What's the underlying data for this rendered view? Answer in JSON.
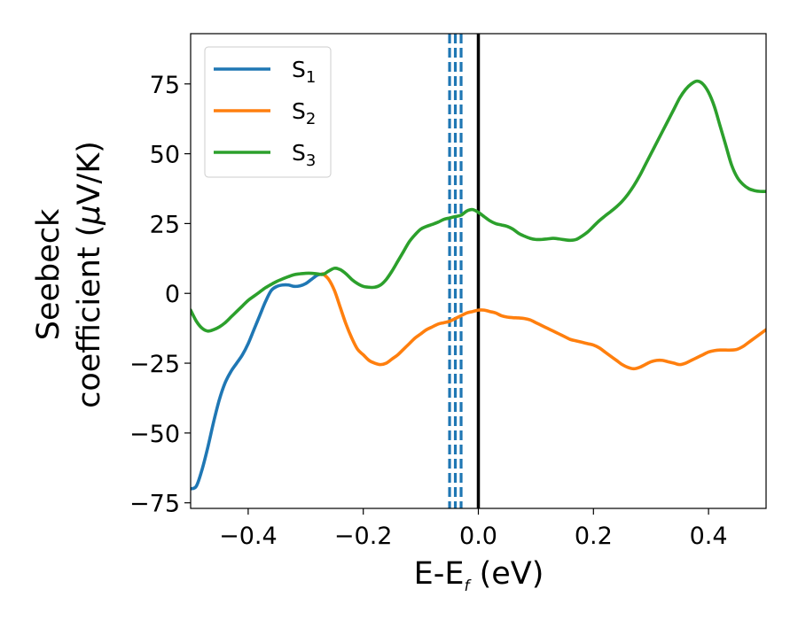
{
  "chart_data": {
    "type": "line",
    "xlabel": "E-E",
    "xlabel_sub": "f",
    "xlabel_tail": " (eV)",
    "ylabel_line1": "Seebeck",
    "ylabel_line2": "coefficient  (",
    "ylabel_mu": "μ",
    "ylabel_tail": "V/K)",
    "xlim": [
      -0.5,
      0.5
    ],
    "ylim": [
      -77,
      93
    ],
    "x_ticks": [
      -0.4,
      -0.2,
      0.0,
      0.2,
      0.4
    ],
    "x_tick_labels": [
      "−0.4",
      "−0.2",
      "0.0",
      "0.2",
      "0.4"
    ],
    "y_ticks": [
      -75,
      -50,
      -25,
      0,
      25,
      50,
      75
    ],
    "y_tick_labels": [
      "−75",
      "−50",
      "−25",
      "0",
      "25",
      "50",
      "75"
    ],
    "legend_position": "top-left",
    "series": [
      {
        "name": "S",
        "sub": "1",
        "color": "#1f77b4",
        "points": [
          [
            -0.5,
            -70
          ],
          [
            -0.49,
            -69
          ],
          [
            -0.48,
            -63
          ],
          [
            -0.47,
            -55
          ],
          [
            -0.46,
            -46
          ],
          [
            -0.45,
            -38
          ],
          [
            -0.44,
            -32
          ],
          [
            -0.43,
            -28
          ],
          [
            -0.42,
            -25
          ],
          [
            -0.41,
            -22
          ],
          [
            -0.4,
            -18
          ],
          [
            -0.39,
            -13
          ],
          [
            -0.38,
            -8
          ],
          [
            -0.37,
            -3
          ],
          [
            -0.36,
            1
          ],
          [
            -0.35,
            2.5
          ],
          [
            -0.34,
            3
          ],
          [
            -0.33,
            3
          ],
          [
            -0.32,
            2.5
          ],
          [
            -0.31,
            2.7
          ],
          [
            -0.3,
            3.5
          ],
          [
            -0.29,
            5
          ],
          [
            -0.28,
            6.5
          ],
          [
            -0.27,
            7
          ]
        ]
      },
      {
        "name": "S",
        "sub": "2",
        "color": "#ff7f0e",
        "points": [
          [
            -0.27,
            7
          ],
          [
            -0.26,
            5
          ],
          [
            -0.25,
            1
          ],
          [
            -0.24,
            -5
          ],
          [
            -0.23,
            -11
          ],
          [
            -0.22,
            -16
          ],
          [
            -0.21,
            -20
          ],
          [
            -0.2,
            -22
          ],
          [
            -0.19,
            -24
          ],
          [
            -0.18,
            -25
          ],
          [
            -0.17,
            -25.5
          ],
          [
            -0.16,
            -25
          ],
          [
            -0.15,
            -23.5
          ],
          [
            -0.14,
            -22
          ],
          [
            -0.13,
            -20
          ],
          [
            -0.12,
            -18
          ],
          [
            -0.11,
            -16
          ],
          [
            -0.1,
            -14.5
          ],
          [
            -0.09,
            -13
          ],
          [
            -0.08,
            -12
          ],
          [
            -0.07,
            -11
          ],
          [
            -0.06,
            -10.5
          ],
          [
            -0.05,
            -10
          ],
          [
            -0.04,
            -9
          ],
          [
            -0.03,
            -8
          ],
          [
            -0.02,
            -7
          ],
          [
            -0.01,
            -6.5
          ],
          [
            0.0,
            -6
          ],
          [
            0.01,
            -6
          ],
          [
            0.02,
            -6.5
          ],
          [
            0.03,
            -7
          ],
          [
            0.04,
            -8
          ],
          [
            0.05,
            -8.5
          ],
          [
            0.06,
            -8.7
          ],
          [
            0.07,
            -8.8
          ],
          [
            0.08,
            -9
          ],
          [
            0.09,
            -9.5
          ],
          [
            0.1,
            -10.5
          ],
          [
            0.11,
            -11.5
          ],
          [
            0.12,
            -12.5
          ],
          [
            0.13,
            -13.5
          ],
          [
            0.14,
            -14.5
          ],
          [
            0.15,
            -15.5
          ],
          [
            0.16,
            -16.5
          ],
          [
            0.17,
            -17
          ],
          [
            0.18,
            -17.5
          ],
          [
            0.19,
            -18
          ],
          [
            0.2,
            -18.5
          ],
          [
            0.21,
            -19.5
          ],
          [
            0.22,
            -21
          ],
          [
            0.23,
            -22.5
          ],
          [
            0.24,
            -24
          ],
          [
            0.25,
            -25.5
          ],
          [
            0.26,
            -26.5
          ],
          [
            0.27,
            -27
          ],
          [
            0.28,
            -26.5
          ],
          [
            0.29,
            -25.5
          ],
          [
            0.3,
            -24.5
          ],
          [
            0.31,
            -24
          ],
          [
            0.32,
            -24
          ],
          [
            0.33,
            -24.5
          ],
          [
            0.34,
            -25
          ],
          [
            0.35,
            -25.5
          ],
          [
            0.36,
            -25
          ],
          [
            0.37,
            -24
          ],
          [
            0.38,
            -23
          ],
          [
            0.39,
            -22
          ],
          [
            0.4,
            -21
          ],
          [
            0.41,
            -20.5
          ],
          [
            0.42,
            -20.3
          ],
          [
            0.43,
            -20.3
          ],
          [
            0.44,
            -20.3
          ],
          [
            0.45,
            -20
          ],
          [
            0.46,
            -19
          ],
          [
            0.47,
            -17.5
          ],
          [
            0.48,
            -16
          ],
          [
            0.49,
            -14.5
          ],
          [
            0.5,
            -13
          ]
        ]
      },
      {
        "name": "S",
        "sub": "3",
        "color": "#2ca02c",
        "points": [
          [
            -0.5,
            -6
          ],
          [
            -0.49,
            -10
          ],
          [
            -0.48,
            -12.5
          ],
          [
            -0.47,
            -13.5
          ],
          [
            -0.46,
            -13
          ],
          [
            -0.45,
            -12
          ],
          [
            -0.44,
            -10.5
          ],
          [
            -0.43,
            -8.5
          ],
          [
            -0.42,
            -6.5
          ],
          [
            -0.41,
            -4.5
          ],
          [
            -0.4,
            -2.5
          ],
          [
            -0.39,
            -1
          ],
          [
            -0.38,
            0.5
          ],
          [
            -0.37,
            2
          ],
          [
            -0.36,
            3.2
          ],
          [
            -0.35,
            4.3
          ],
          [
            -0.34,
            5.2
          ],
          [
            -0.33,
            6
          ],
          [
            -0.32,
            6.7
          ],
          [
            -0.31,
            7
          ],
          [
            -0.3,
            7.2
          ],
          [
            -0.29,
            7.2
          ],
          [
            -0.28,
            7
          ],
          [
            -0.27,
            6.8
          ],
          [
            -0.26,
            8
          ],
          [
            -0.25,
            9
          ],
          [
            -0.24,
            8.5
          ],
          [
            -0.23,
            7
          ],
          [
            -0.22,
            5
          ],
          [
            -0.21,
            3.5
          ],
          [
            -0.2,
            2.5
          ],
          [
            -0.19,
            2.2
          ],
          [
            -0.18,
            2.2
          ],
          [
            -0.17,
            3
          ],
          [
            -0.16,
            5
          ],
          [
            -0.15,
            8
          ],
          [
            -0.14,
            11.5
          ],
          [
            -0.13,
            15
          ],
          [
            -0.12,
            18.5
          ],
          [
            -0.11,
            21
          ],
          [
            -0.1,
            23
          ],
          [
            -0.09,
            24
          ],
          [
            -0.08,
            24.7
          ],
          [
            -0.07,
            25.5
          ],
          [
            -0.06,
            26.5
          ],
          [
            -0.05,
            27
          ],
          [
            -0.04,
            27.5
          ],
          [
            -0.03,
            28
          ],
          [
            -0.02,
            29.5
          ],
          [
            -0.01,
            30
          ],
          [
            0.0,
            29
          ],
          [
            0.01,
            27.5
          ],
          [
            0.02,
            26
          ],
          [
            0.03,
            25
          ],
          [
            0.04,
            24.5
          ],
          [
            0.05,
            24
          ],
          [
            0.06,
            23
          ],
          [
            0.07,
            21.5
          ],
          [
            0.08,
            20.5
          ],
          [
            0.09,
            19.7
          ],
          [
            0.1,
            19.3
          ],
          [
            0.11,
            19.3
          ],
          [
            0.12,
            19.5
          ],
          [
            0.13,
            19.7
          ],
          [
            0.14,
            19.5
          ],
          [
            0.15,
            19.2
          ],
          [
            0.16,
            19
          ],
          [
            0.17,
            19.3
          ],
          [
            0.18,
            20.5
          ],
          [
            0.19,
            22
          ],
          [
            0.2,
            24
          ],
          [
            0.21,
            26
          ],
          [
            0.22,
            27.7
          ],
          [
            0.23,
            29.3
          ],
          [
            0.24,
            31
          ],
          [
            0.25,
            33
          ],
          [
            0.26,
            35.5
          ],
          [
            0.27,
            38.5
          ],
          [
            0.28,
            42
          ],
          [
            0.29,
            46
          ],
          [
            0.3,
            50
          ],
          [
            0.31,
            54
          ],
          [
            0.32,
            58
          ],
          [
            0.33,
            62
          ],
          [
            0.34,
            66
          ],
          [
            0.35,
            70
          ],
          [
            0.36,
            73
          ],
          [
            0.37,
            75
          ],
          [
            0.38,
            76
          ],
          [
            0.39,
            75
          ],
          [
            0.4,
            72
          ],
          [
            0.41,
            67
          ],
          [
            0.42,
            60
          ],
          [
            0.43,
            53
          ],
          [
            0.44,
            46
          ],
          [
            0.45,
            41.5
          ],
          [
            0.46,
            39
          ],
          [
            0.47,
            37.5
          ],
          [
            0.48,
            36.8
          ],
          [
            0.49,
            36.5
          ],
          [
            0.5,
            36.5
          ]
        ]
      }
    ],
    "vlines": [
      {
        "x": -0.05,
        "style": "dashed",
        "color": "#1f77b4"
      },
      {
        "x": -0.04,
        "style": "dashed",
        "color": "#1f77b4"
      },
      {
        "x": -0.03,
        "style": "dashed",
        "color": "#1f77b4"
      },
      {
        "x": 0.0,
        "style": "solid",
        "color": "#000000"
      }
    ]
  }
}
